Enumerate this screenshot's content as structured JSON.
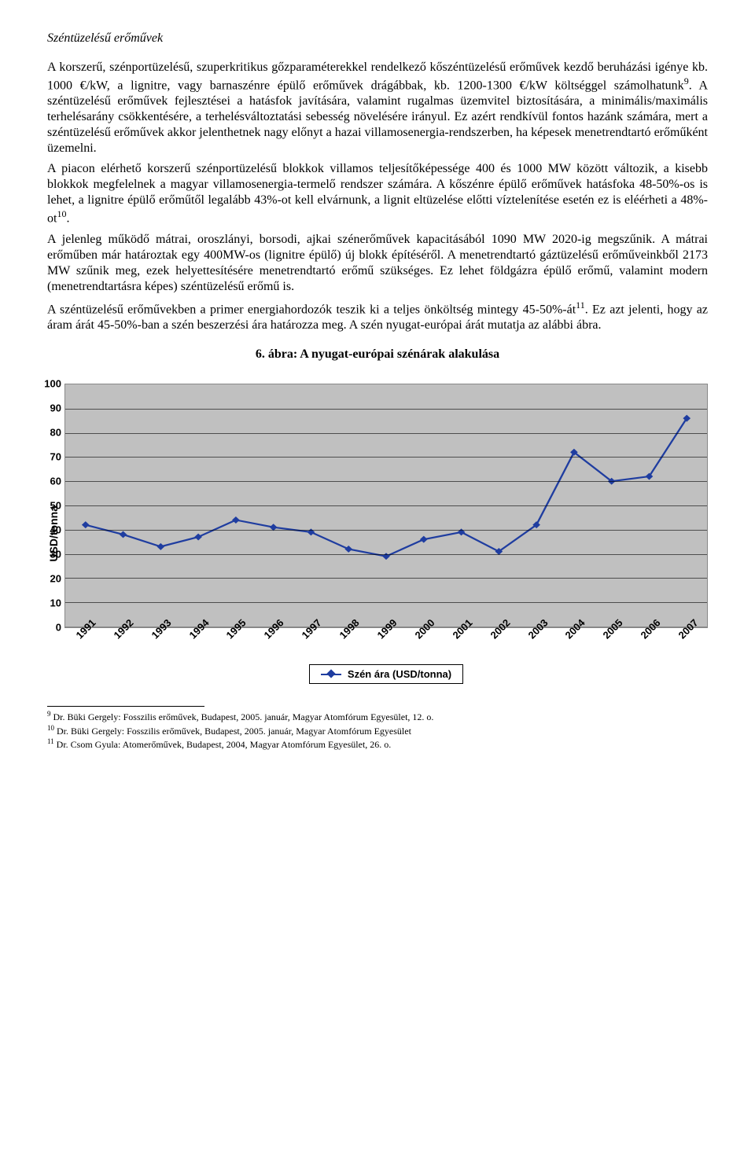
{
  "section_title": "Széntüzelésű erőművek",
  "para1": "A korszerű, szénportüzelésű, szuperkritikus gőzparaméterekkel rendelkező kőszéntüzelésű erőművek kezdő beruházási igénye kb. 1000 €/kW, a lignitre, vagy barnaszénre épülő erőművek drágábbak, kb. 1200-1300 €/kW költséggel számolhatunk",
  "fn9_mark": "9",
  "para1_tail": ". A széntüzelésű erőművek fejlesztései a hatásfok javítására, valamint rugalmas üzemvitel biztosítására, a minimális/maximális terhelésarány csökkentésére, a terhelésváltoztatási sebesség növelésére irányul. Ez azért rendkívül fontos hazánk számára, mert a széntüzelésű erőművek akkor jelenthetnek nagy előnyt a hazai villamosenergia-rendszerben, ha képesek menetrendtartó erőműként üzemelni.",
  "para2": "A piacon elérhető korszerű szénportüzelésű blokkok villamos teljesítőképessége 400 és 1000 MW között változik, a kisebb blokkok megfelelnek a magyar villamosenergia-termelő rendszer számára. A kőszénre épülő erőművek hatásfoka 48-50%-os is lehet, a lignitre épülő erőműtől legalább 43%-ot kell elvárnunk, a lignit eltüzelése előtti víztelenítése esetén ez is eléérheti a 48%-ot",
  "fn10_mark": "10",
  "para2_tail": ".",
  "para3": "A jelenleg működő mátrai, oroszlányi, borsodi, ajkai szénerőművek kapacitásából 1090 MW 2020-ig megszűnik. A mátrai erőműben már határoztak egy 400MW-os (lignitre épülő) új blokk építéséről. A menetrendtartó gáztüzelésű erőműveinkből 2173 MW szűnik meg, ezek helyettesítésére menetrendtartó erőmű szükséges. Ez lehet földgázra épülő erőmű, valamint modern (menetrendtartásra képes) széntüzelésű erőmű is.",
  "para4": "A széntüzelésű erőművekben a primer energiahordozók teszik ki a teljes önköltség mintegy 45-50%-át",
  "fn11_mark": "11",
  "para4_tail": ". Ez azt jelenti, hogy az áram árát 45-50%-ban a szén beszerzési ára határozza meg. A szén nyugat-európai árát mutatja az alábbi ábra.",
  "chart_title": "6. ábra: A nyugat-európai szénárak alakulása",
  "chart": {
    "type": "line",
    "background_color": "#c0c0c0",
    "grid_color": "#000000",
    "line_color": "#1f3da0",
    "marker_color": "#1f3da0",
    "marker_style": "diamond",
    "line_width": 2.2,
    "marker_size": 9,
    "y_label": "USD/tonna",
    "y_label_fontsize": 14,
    "ylim_min": 0,
    "ylim_max": 100,
    "ytick_step": 10,
    "x_labels": [
      "1991",
      "1992",
      "1993",
      "1994",
      "1995",
      "1996",
      "1997",
      "1998",
      "1999",
      "2000",
      "2001",
      "2002",
      "2003",
      "2004",
      "2005",
      "2006",
      "2007"
    ],
    "values": [
      42,
      38,
      33,
      37,
      44,
      41,
      39,
      32,
      29,
      36,
      39,
      31,
      42,
      72,
      60,
      62,
      86
    ],
    "tick_fontsize": 13,
    "tick_fontweight": "bold"
  },
  "legend_label": "Szén ára (USD/tonna)",
  "footnotes": {
    "fn9": "Dr. Büki Gergely: Fosszilis erőművek, Budapest, 2005. január, Magyar Atomfórum Egyesület, 12. o.",
    "fn10": "Dr. Büki Gergely: Fosszilis erőművek, Budapest, 2005. január, Magyar Atomfórum Egyesület",
    "fn11": "Dr. Csom Gyula: Atomerőművek, Budapest, 2004, Magyar Atomfórum Egyesület, 26. o."
  }
}
